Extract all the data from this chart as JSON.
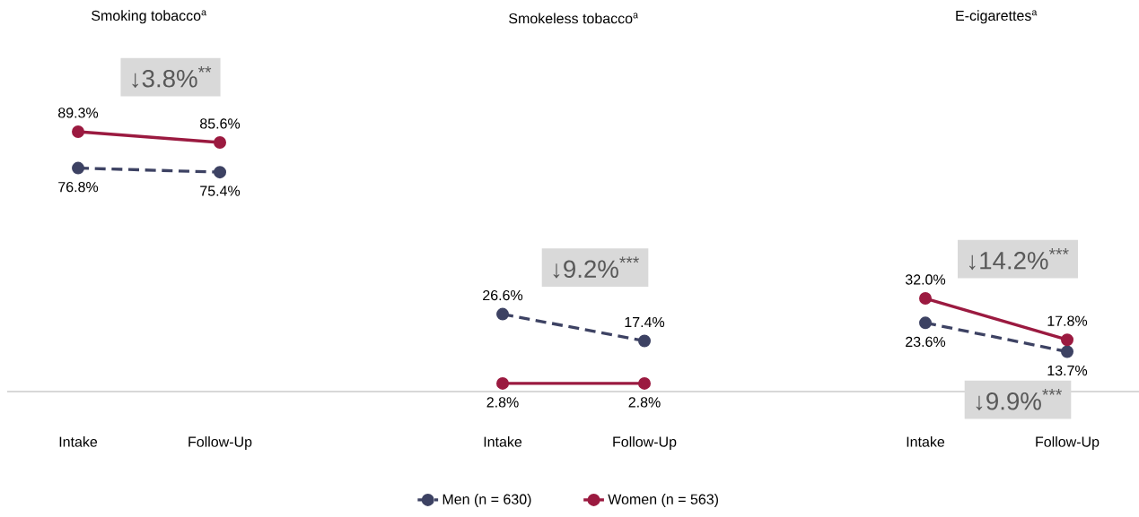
{
  "chart_data": [
    {
      "type": "line",
      "title": "Smoking tobacco$^{a}$",
      "categories": [
        "Intake",
        "Follow-Up"
      ],
      "marker": "circle",
      "legend": "bottom",
      "series": [
        {
          "name": "Men (n = 630)",
          "color": "#3d4263",
          "line_style": "dashed",
          "values": [
            76.8,
            75.4
          ],
          "value_labels": [
            "76.8%",
            "75.4%"
          ]
        },
        {
          "name": "Women (n = 563)",
          "color": "#9b1a40",
          "line_style": "solid",
          "values": [
            89.3,
            85.6
          ],
          "value_labels": [
            "89.3%",
            "85.6%"
          ]
        }
      ],
      "annotations": [
        "↓3.8%$^{**}$"
      ]
    },
    {
      "type": "line",
      "title": "Smokeless tobacco$^{a}$",
      "categories": [
        "Intake",
        "Follow-Up"
      ],
      "marker": "circle",
      "series": [
        {
          "color": "#3d4263",
          "line_style": "dashed",
          "values": [
            26.6,
            17.4
          ],
          "value_labels": [
            "26.6%",
            "17.4%"
          ]
        },
        {
          "color": "#9b1a40",
          "line_style": "solid",
          "values": [
            2.8,
            2.8
          ],
          "value_labels": [
            "2.8%",
            "2.8%"
          ]
        }
      ],
      "annotations": [
        "↓9.2%$^{***}$"
      ]
    },
    {
      "type": "line",
      "title": "E-cigarettes$^{a}$",
      "categories": [
        "Intake",
        "Follow-Up"
      ],
      "marker": "circle",
      "series": [
        {
          "color": "#3d4263",
          "line_style": "dashed",
          "values": [
            23.6,
            13.7
          ],
          "value_labels": [
            "23.6%",
            "13.7%"
          ]
        },
        {
          "color": "#9b1a40",
          "line_style": "solid",
          "values": [
            32.0,
            17.8
          ],
          "value_labels": [
            "32.0%",
            "17.8%"
          ]
        }
      ],
      "annotations": [
        "↓14.2%$^{***}$",
        "↓9.9%$^{***}$"
      ]
    }
  ]
}
